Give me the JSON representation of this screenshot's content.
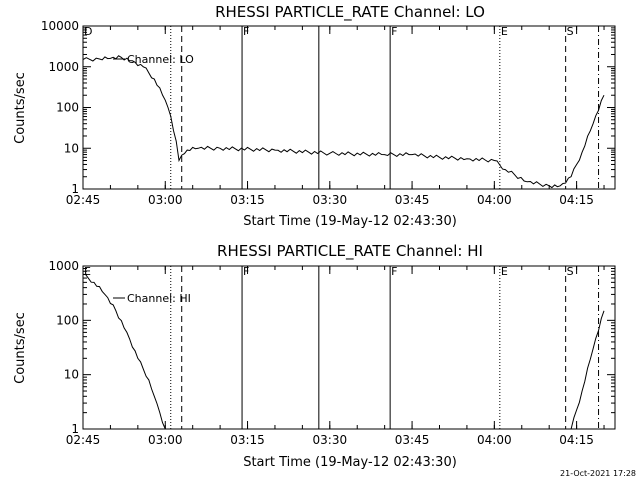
{
  "footer": {
    "date": "21-Oct-2021 17:28"
  },
  "colors": {
    "background": "#ffffff",
    "foreground": "#000000"
  },
  "chart_data": [
    {
      "type": "line",
      "title": "RHESSI PARTICLE_RATE Channel: LO",
      "xlabel": "Start Time (19-May-12 02:43:30)",
      "ylabel": "Counts/sec",
      "xlim": [
        "02:45",
        "04:22"
      ],
      "ylim": [
        1,
        10000
      ],
      "yscale": "log",
      "x_ticks": [
        "02:45",
        "03:00",
        "03:15",
        "03:30",
        "03:45",
        "04:00",
        "04:15"
      ],
      "y_ticks": [
        "1",
        "10",
        "100",
        "1000",
        "10000"
      ],
      "series": [
        {
          "name": "Channel: LO",
          "points": [
            [
              "02:45",
              1500
            ],
            [
              "02:48",
              1550
            ],
            [
              "02:50",
              1600
            ],
            [
              "02:52",
              1700
            ],
            [
              "02:54",
              1400
            ],
            [
              "02:56",
              1000
            ],
            [
              "02:58",
              500
            ],
            [
              "03:00",
              150
            ],
            [
              "03:01",
              60
            ],
            [
              "03:02",
              15
            ],
            [
              "03:02:30",
              5
            ],
            [
              "03:04",
              9
            ],
            [
              "03:06",
              10
            ],
            [
              "03:10",
              10
            ],
            [
              "03:20",
              9
            ],
            [
              "03:30",
              7.5
            ],
            [
              "03:40",
              7
            ],
            [
              "03:45",
              7
            ],
            [
              "03:50",
              6
            ],
            [
              "03:55",
              5.5
            ],
            [
              "04:00",
              5
            ],
            [
              "04:02",
              3
            ],
            [
              "04:06",
              1.5
            ],
            [
              "04:10",
              1.2
            ],
            [
              "04:12",
              1.2
            ],
            [
              "04:14",
              2
            ],
            [
              "04:16",
              8
            ],
            [
              "04:18",
              40
            ],
            [
              "04:20",
              200
            ]
          ]
        }
      ],
      "annotations": [
        {
          "label": "D",
          "time": "02:45",
          "style": "none"
        },
        {
          "label": "",
          "time": "03:01",
          "style": "dotted"
        },
        {
          "label": "",
          "time": "03:03",
          "style": "dashed"
        },
        {
          "label": "F",
          "time": "03:14",
          "style": "solid"
        },
        {
          "label": "",
          "time": "03:28",
          "style": "solid"
        },
        {
          "label": "F",
          "time": "03:41",
          "style": "solid"
        },
        {
          "label": "E",
          "time": "04:01",
          "style": "dotted"
        },
        {
          "label": "S",
          "time": "04:13",
          "style": "dashed"
        },
        {
          "label": "",
          "time": "04:19",
          "style": "dashdot"
        }
      ]
    },
    {
      "type": "line",
      "title": "RHESSI PARTICLE_RATE Channel: HI",
      "xlabel": "Start Time (19-May-12 02:43:30)",
      "ylabel": "Counts/sec",
      "xlim": [
        "02:45",
        "04:22"
      ],
      "ylim": [
        1,
        1000
      ],
      "yscale": "log",
      "x_ticks": [
        "02:45",
        "03:00",
        "03:15",
        "03:30",
        "03:45",
        "04:00",
        "04:15"
      ],
      "y_ticks": [
        "1",
        "10",
        "100",
        "1000"
      ],
      "series": [
        {
          "name": "Channel: HI",
          "points": [
            [
              "02:45",
              700
            ],
            [
              "02:47",
              500
            ],
            [
              "02:49",
              300
            ],
            [
              "02:51",
              150
            ],
            [
              "02:53",
              60
            ],
            [
              "02:55",
              20
            ],
            [
              "02:57",
              8
            ],
            [
              "02:58",
              4
            ],
            [
              "02:59",
              2
            ],
            [
              "03:00",
              1
            ],
            [
              "04:14",
              1
            ],
            [
              "04:16",
              5
            ],
            [
              "04:18",
              30
            ],
            [
              "04:20",
              150
            ]
          ]
        }
      ],
      "annotations": [
        {
          "label": "E",
          "time": "02:45",
          "style": "none"
        },
        {
          "label": "",
          "time": "03:01",
          "style": "dotted"
        },
        {
          "label": "",
          "time": "03:03",
          "style": "dashed"
        },
        {
          "label": "F",
          "time": "03:14",
          "style": "solid"
        },
        {
          "label": "",
          "time": "03:28",
          "style": "solid"
        },
        {
          "label": "F",
          "time": "03:41",
          "style": "solid"
        },
        {
          "label": "E",
          "time": "04:01",
          "style": "dotted"
        },
        {
          "label": "S",
          "time": "04:13",
          "style": "dashed"
        },
        {
          "label": "",
          "time": "04:19",
          "style": "dashdot"
        }
      ]
    }
  ]
}
